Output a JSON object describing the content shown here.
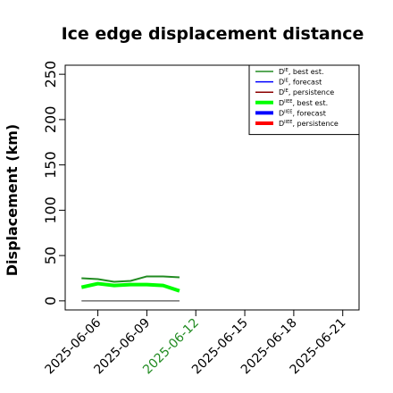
{
  "chart_data": {
    "type": "line",
    "title": "Ice edge displacement distance",
    "ylabel": "Displacement (km)",
    "xlabel": "",
    "ylim": [
      -10,
      260
    ],
    "xlim": [
      "2025-06-04",
      "2025-06-22"
    ],
    "yticks": [
      "0",
      "50",
      "100",
      "150",
      "200",
      "250"
    ],
    "xticks": [
      "2025-06-06",
      "2025-06-09",
      "2025-06-12",
      "2025-06-15",
      "2025-06-18",
      "2025-06-21"
    ],
    "highlight_xtick": "2025-06-12",
    "highlight_color": "#228b22",
    "grid": false,
    "legend_position": "top-right",
    "series": [
      {
        "name": "D^IE, best est.",
        "label_main": "D",
        "label_sup": "IE",
        "label_rest": ", best est.",
        "color": "#228b22",
        "width": "thin",
        "x": [
          "2025-06-05",
          "2025-06-06",
          "2025-06-07",
          "2025-06-08",
          "2025-06-09",
          "2025-06-10",
          "2025-06-11"
        ],
        "y": [
          25,
          24,
          21,
          22,
          27,
          27,
          26
        ]
      },
      {
        "name": "D^IE, forecast",
        "label_main": "D",
        "label_sup": "IE",
        "label_rest": ", forecast",
        "color": "#0000ff",
        "width": "thin",
        "x": [],
        "y": []
      },
      {
        "name": "D^IE, persistence",
        "label_main": "D",
        "label_sup": "IE",
        "label_rest": ", persistence",
        "color": "#8b0000",
        "width": "thin",
        "x": [],
        "y": []
      },
      {
        "name": "D^IIEE, best est.",
        "label_main": "D",
        "label_sup": "IIEE",
        "label_rest": ", best est.",
        "color": "#00ff00",
        "width": "thick",
        "x": [
          "2025-06-05",
          "2025-06-06",
          "2025-06-07",
          "2025-06-08",
          "2025-06-09",
          "2025-06-10",
          "2025-06-11"
        ],
        "y": [
          15,
          19,
          17,
          18,
          18,
          17,
          11
        ]
      },
      {
        "name": "D^IIEE, forecast",
        "label_main": "D",
        "label_sup": "IIEE",
        "label_rest": ", forecast",
        "color": "#0000ff",
        "width": "thick",
        "x": [],
        "y": []
      },
      {
        "name": "D^IIEE, persistence",
        "label_main": "D",
        "label_sup": "IIEE",
        "label_rest": ", persistence",
        "color": "#ff0000",
        "width": "thick",
        "x": [],
        "y": []
      }
    ],
    "reference_line": {
      "color": "#555555",
      "x": [
        "2025-06-05",
        "2025-06-11"
      ],
      "y": [
        0,
        0
      ]
    }
  }
}
